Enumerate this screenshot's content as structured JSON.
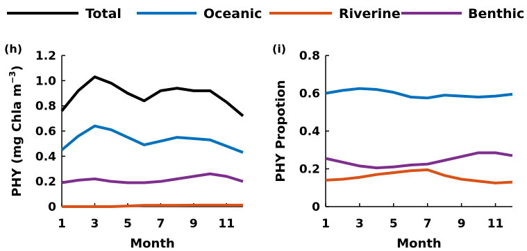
{
  "legend": [
    {
      "name": "Total",
      "color": "#000000"
    },
    {
      "name": "Oceanic",
      "color": "#0072BD"
    },
    {
      "name": "Riverine",
      "color": "#D95319"
    },
    {
      "name": "Benthic",
      "color": "#7E2F8E"
    }
  ],
  "chart_data": [
    {
      "type": "line",
      "panel_label": "(h)",
      "xlabel": "Month",
      "ylabel": "PHY (mg Chla m",
      "ylabel_sup": "−3",
      "ylabel_close": ")",
      "x": [
        1,
        2,
        3,
        4,
        5,
        6,
        7,
        8,
        9,
        10,
        11,
        12
      ],
      "xticks": [
        "1",
        "3",
        "5",
        "7",
        "9",
        "11"
      ],
      "xlim": [
        1,
        12
      ],
      "yticks": [
        "0",
        "0.2",
        "0.4",
        "0.6",
        "0.8",
        "1.0",
        "1.2"
      ],
      "ylim": [
        0,
        1.2
      ],
      "series": [
        {
          "name": "Total",
          "color": "#000000",
          "values": [
            0.76,
            0.92,
            1.03,
            0.98,
            0.9,
            0.84,
            0.92,
            0.94,
            0.92,
            0.92,
            0.83,
            0.72
          ]
        },
        {
          "name": "Oceanic",
          "color": "#0072BD",
          "values": [
            0.45,
            0.56,
            0.64,
            0.61,
            0.55,
            0.49,
            0.52,
            0.55,
            0.54,
            0.53,
            0.48,
            0.43
          ]
        },
        {
          "name": "Riverine",
          "color": "#D95319",
          "values": [
            0.0,
            0.0,
            0.0,
            0.0,
            0.005,
            0.01,
            0.01,
            0.01,
            0.012,
            0.012,
            0.012,
            0.012
          ]
        },
        {
          "name": "Benthic",
          "color": "#7E2F8E",
          "values": [
            0.19,
            0.21,
            0.22,
            0.2,
            0.19,
            0.19,
            0.2,
            0.22,
            0.24,
            0.26,
            0.24,
            0.2
          ]
        }
      ]
    },
    {
      "type": "line",
      "panel_label": "(i)",
      "xlabel": "Month",
      "ylabel": "PHY Propotion",
      "x": [
        1,
        2,
        3,
        4,
        5,
        6,
        7,
        8,
        9,
        10,
        11,
        12
      ],
      "xticks": [
        "1",
        "3",
        "5",
        "7",
        "9",
        "11"
      ],
      "xlim": [
        1,
        12
      ],
      "yticks": [
        "0",
        "0.2",
        "0.4",
        "0.6",
        "0.8"
      ],
      "ylim": [
        0,
        0.8
      ],
      "series": [
        {
          "name": "Oceanic",
          "color": "#0072BD",
          "values": [
            0.6,
            0.615,
            0.625,
            0.62,
            0.605,
            0.58,
            0.575,
            0.59,
            0.585,
            0.58,
            0.585,
            0.595
          ]
        },
        {
          "name": "Riverine",
          "color": "#D95319",
          "values": [
            0.14,
            0.145,
            0.155,
            0.17,
            0.18,
            0.19,
            0.195,
            0.165,
            0.145,
            0.135,
            0.125,
            0.13
          ]
        },
        {
          "name": "Benthic",
          "color": "#7E2F8E",
          "values": [
            0.255,
            0.235,
            0.215,
            0.205,
            0.21,
            0.22,
            0.225,
            0.245,
            0.265,
            0.285,
            0.285,
            0.27
          ]
        }
      ]
    }
  ]
}
